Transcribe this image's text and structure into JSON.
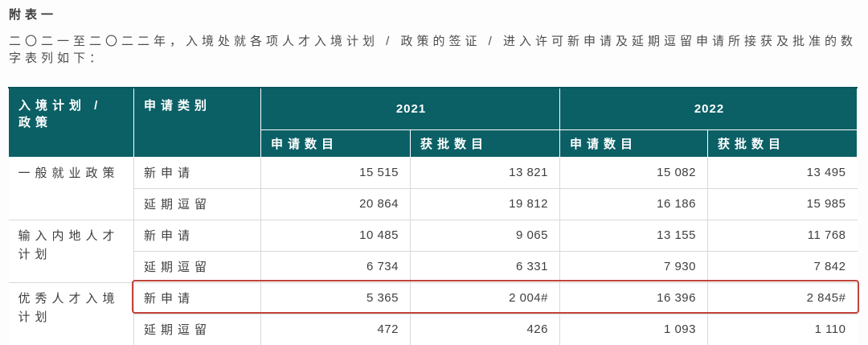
{
  "title": "附表一",
  "intro": {
    "line1": "二〇二一至二〇二二年，入境处就各项人才入境计划 / 政策的签证 / 进入许可新申请及延期逗留申请所接获及批准的数",
    "line2": "字表列如下："
  },
  "table": {
    "header": {
      "policy": "入境计划 / 政策",
      "category": "申请类别",
      "years": [
        "2021",
        "2022"
      ],
      "sub": [
        "申请数目",
        "获批数目",
        "申请数目",
        "获批数目"
      ]
    },
    "groups": [
      {
        "policy": "一般就业政策",
        "rows": [
          {
            "category": "新申请",
            "values": [
              "15 515",
              "13 821",
              "15 082",
              "13 495"
            ],
            "highlight": false
          },
          {
            "category": "延期逗留",
            "values": [
              "20 864",
              "19 812",
              "16 186",
              "15 985"
            ],
            "highlight": false
          }
        ]
      },
      {
        "policy": "输入内地人才计划",
        "rows": [
          {
            "category": "新申请",
            "values": [
              "10 485",
              "9 065",
              "13 155",
              "11 768"
            ],
            "highlight": false
          },
          {
            "category": "延期逗留",
            "values": [
              "6 734",
              "6 331",
              "7 930",
              "7 842"
            ],
            "highlight": false
          }
        ]
      },
      {
        "policy": "优秀人才入境计划",
        "rows": [
          {
            "category": "新申请",
            "values": [
              "5 365",
              "2 004#",
              "16 396",
              "2 845#"
            ],
            "highlight": true
          },
          {
            "category": "延期逗留",
            "values": [
              "472",
              "426",
              "1 093",
              "1 110"
            ],
            "highlight": false
          }
        ]
      }
    ]
  },
  "colors": {
    "accent_teal": "#0b6066",
    "accent_teal_dark": "#0a555a",
    "highlight_red": "#c2443c",
    "body_text": "#3f3f3f",
    "intro_text": "#4e4e4e",
    "border_gray": "#d9d9d9",
    "header_text": "#ffffff"
  }
}
